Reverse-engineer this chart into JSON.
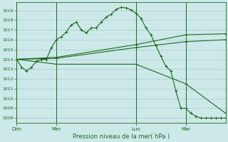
{
  "xlabel": "Pression niveau de la mer( hPa )",
  "background_color": "#cce8e8",
  "grid_color": "#aacccc",
  "line_color": "#1a6b1a",
  "ylim": [
    1007.5,
    1019.8
  ],
  "yticks": [
    1008,
    1009,
    1010,
    1011,
    1012,
    1013,
    1014,
    1015,
    1016,
    1017,
    1018,
    1019
  ],
  "day_labels": [
    "Dim",
    "Mer",
    "Lun",
    "Mar"
  ],
  "day_positions": [
    0,
    16,
    48,
    68
  ],
  "xlim": [
    0,
    84
  ],
  "series1_x": [
    0,
    2,
    4,
    6,
    8,
    10,
    12,
    14,
    16,
    18,
    20,
    22,
    24,
    26,
    28,
    30,
    32,
    34,
    36,
    38,
    40,
    42,
    44,
    46,
    48,
    50,
    52,
    54,
    56,
    58,
    60,
    62,
    64,
    66,
    68,
    70,
    72,
    74,
    76,
    78,
    80,
    82,
    84
  ],
  "series1_y": [
    1014.0,
    1013.2,
    1012.8,
    1013.2,
    1013.8,
    1014.0,
    1014.0,
    1015.2,
    1016.0,
    1016.3,
    1016.8,
    1017.5,
    1017.8,
    1017.0,
    1016.7,
    1017.2,
    1017.2,
    1017.8,
    1018.3,
    1018.6,
    1019.1,
    1019.3,
    1019.25,
    1019.05,
    1018.7,
    1018.2,
    1017.2,
    1016.5,
    1015.4,
    1014.3,
    1013.3,
    1012.8,
    1010.8,
    1009.0,
    1009.0,
    1008.5,
    1008.2,
    1008.0,
    1008.0,
    1008.0,
    1008.0,
    1008.0,
    1008.0
  ],
  "series2_x": [
    0,
    16,
    48,
    68,
    84
  ],
  "series2_y": [
    1014.0,
    1014.2,
    1015.5,
    1016.5,
    1016.6
  ],
  "series3_x": [
    0,
    16,
    48,
    68,
    84
  ],
  "series3_y": [
    1014.0,
    1014.1,
    1015.2,
    1015.8,
    1016.0
  ],
  "series4_x": [
    0,
    16,
    48,
    68,
    84
  ],
  "series4_y": [
    1014.0,
    1013.5,
    1013.5,
    1011.5,
    1008.5
  ]
}
